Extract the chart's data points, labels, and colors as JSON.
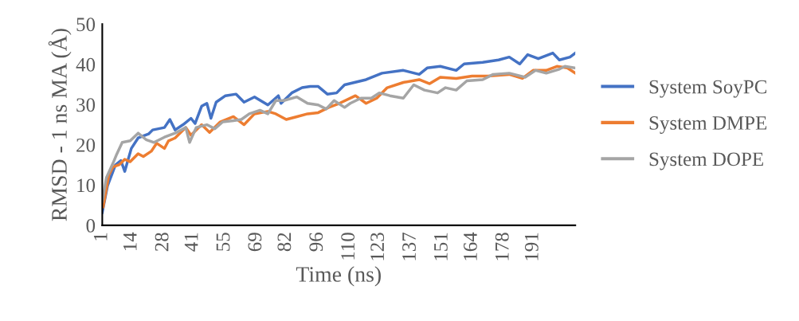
{
  "chart_data": {
    "type": "line",
    "xlabel": "Time (ns)",
    "ylabel": "RMSD - 1 ns MA (Å)",
    "xlim": [
      1,
      209.5
    ],
    "xticks": [
      1,
      14,
      28,
      41,
      55,
      69,
      82,
      96,
      110,
      123,
      137,
      151,
      164,
      178,
      191
    ],
    "ylim": [
      0,
      50
    ],
    "yticks": [
      0,
      10,
      20,
      30,
      40,
      50
    ],
    "grid": false,
    "legend": "right",
    "marker": "none",
    "line_style": "solid",
    "series": [
      {
        "name": "System SoyPC",
        "color": "#4472c4",
        "x": [
          1,
          3.3,
          6.8,
          9.2,
          10.9,
          13.8,
          16.8,
          21.4,
          23.2,
          28.4,
          30.8,
          33.1,
          36.6,
          40.1,
          41.9,
          44.8,
          47.1,
          48.9,
          51.2,
          55.3,
          60.0,
          63.5,
          68.1,
          74.0,
          78.6,
          79.8,
          84.5,
          89.1,
          92.7,
          96.2,
          100.2,
          104.3,
          107.8,
          117.3,
          124.3,
          133.7,
          140.7,
          144.2,
          150.0,
          157.0,
          160.5,
          168.7,
          175.7,
          180.4,
          185.0,
          188.5,
          193.2,
          199.6,
          202.5,
          207.2,
          209.5
        ],
        "values": [
          3.2,
          9.8,
          15.0,
          16.1,
          13.4,
          19.1,
          21.7,
          22.7,
          23.7,
          24.3,
          26.3,
          23.7,
          25.0,
          26.6,
          25.3,
          29.6,
          30.3,
          26.6,
          30.6,
          32.2,
          32.6,
          30.6,
          31.9,
          29.9,
          32.2,
          30.3,
          32.9,
          34.2,
          34.5,
          34.5,
          32.6,
          32.9,
          34.9,
          36.2,
          37.8,
          38.5,
          37.5,
          39.1,
          39.5,
          38.5,
          40.1,
          40.5,
          41.1,
          41.8,
          40.1,
          42.4,
          41.4,
          42.8,
          41.1,
          41.8,
          42.8
        ]
      },
      {
        "name": "System DMPE",
        "color": "#ed7d31",
        "x": [
          1.4,
          3.9,
          5.7,
          8.6,
          10.9,
          13.3,
          16.8,
          19.1,
          22.6,
          25.0,
          28.4,
          30.2,
          33.1,
          37.8,
          40.1,
          44.8,
          48.3,
          53.0,
          58.8,
          63.5,
          68.1,
          74.0,
          77.5,
          82.1,
          86.8,
          91.5,
          96.2,
          100.8,
          105.5,
          112.6,
          117.3,
          122.0,
          126.6,
          133.7,
          140.7,
          145.3,
          150.0,
          157.0,
          164.0,
          171.0,
          180.4,
          186.2,
          190.9,
          196.7,
          201.4,
          206.0,
          209.5
        ],
        "values": [
          4.6,
          12.5,
          14.5,
          15.1,
          16.4,
          15.8,
          17.8,
          17.1,
          18.4,
          20.4,
          19.1,
          21.0,
          21.7,
          24.3,
          22.4,
          25.0,
          23.1,
          25.7,
          27.0,
          25.0,
          27.7,
          28.3,
          27.7,
          26.3,
          27.0,
          27.7,
          28.0,
          29.3,
          30.3,
          32.2,
          30.3,
          31.6,
          34.2,
          35.5,
          36.2,
          35.2,
          36.8,
          36.5,
          37.1,
          37.1,
          37.5,
          36.5,
          38.5,
          38.5,
          39.5,
          39.1,
          37.8
        ]
      },
      {
        "name": "System DOPE",
        "color": "#a5a5a5",
        "x": [
          1,
          2.8,
          5.7,
          7.4,
          9.8,
          13.3,
          16.8,
          20.3,
          23.8,
          28.4,
          33.1,
          37.8,
          39.5,
          42.4,
          47.1,
          50.6,
          54.1,
          58.8,
          62.3,
          65.8,
          70.5,
          74.0,
          77.5,
          81.0,
          86.8,
          91.5,
          96.2,
          99.7,
          103.2,
          107.8,
          110.3,
          115.0,
          119.6,
          123.1,
          127.8,
          133.7,
          138.3,
          143.0,
          148.8,
          152.3,
          157.0,
          161.7,
          168.7,
          173.3,
          180.4,
          187.4,
          192.0,
          196.7,
          202.5,
          204.9,
          209.5
        ],
        "values": [
          5.9,
          11.8,
          15.4,
          17.7,
          20.6,
          21.0,
          22.9,
          21.3,
          20.6,
          21.9,
          22.9,
          24.3,
          20.6,
          24.3,
          25.0,
          24.0,
          25.7,
          26.0,
          26.3,
          27.7,
          28.6,
          27.7,
          31.0,
          31.0,
          31.9,
          30.3,
          29.9,
          28.9,
          31.0,
          29.3,
          30.3,
          31.6,
          31.6,
          32.9,
          32.2,
          31.6,
          34.9,
          33.6,
          32.9,
          34.2,
          33.6,
          35.9,
          36.2,
          37.5,
          37.8,
          36.8,
          38.5,
          37.8,
          38.8,
          39.5,
          39.1
        ]
      }
    ]
  }
}
